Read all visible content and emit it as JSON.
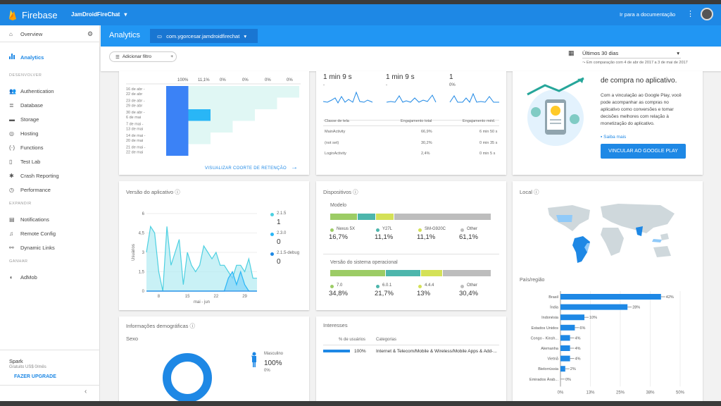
{
  "brand": {
    "name": "Firebase"
  },
  "project": {
    "name": "JamDroidFireChat"
  },
  "topbar": {
    "docs": "Ir para a documentação"
  },
  "sidebar": {
    "overview": "Overview",
    "analytics": "Analytics",
    "sec_dev": "DESENVOLVER",
    "dev": [
      "Authentication",
      "Database",
      "Storage",
      "Hosting",
      "Functions",
      "Test Lab",
      "Crash Reporting",
      "Performance"
    ],
    "sec_expand": "EXPANDIR",
    "expand": [
      "Notifications",
      "Remote Config",
      "Dynamic Links"
    ],
    "sec_earn": "GANHAR",
    "earn": [
      "AdMob"
    ],
    "plan": "Spark",
    "plan_sub": "Gratuito US$ 0/mês",
    "upgrade": "FAZER UPGRADE"
  },
  "subheader": {
    "title": "Analytics",
    "app": "com.ygorcesar.jamdroidfirechat"
  },
  "filter": {
    "add": "Adicionar filtro",
    "range": "Últimos 30 dias",
    "compare": "Em comparação com 4 de abr de 2017 a 3 de mai de 2017"
  },
  "cohort": {
    "header": [
      "100%",
      "11,1%",
      "0%",
      "0%",
      "0%",
      "0%"
    ],
    "rows": [
      "16 de abr - 22 de abr",
      "23 de abr - 29 de abr",
      "30 de abr - 6 de mai",
      "7 de mai - 13 de mai",
      "14 de mai - 20 de mai",
      "21 de mai - 22 de mai"
    ],
    "link": "VISUALIZAR COORTE DE RETENÇÃO"
  },
  "engagement": {
    "values": [
      "1 min 9 s",
      "1 min 9 s",
      "1"
    ],
    "subs": [
      "-",
      "-",
      "0%"
    ],
    "headers": [
      "Classe de tela",
      "Engajamento total",
      "Engajamento méd."
    ],
    "rows": [
      [
        "MainActivity",
        "66,9%",
        "6 min 50 s"
      ],
      [
        "(not set)",
        "30,2%",
        "0 min 35 s"
      ],
      [
        "LoginActivity",
        "2,4%",
        "0 min 5 s"
      ]
    ]
  },
  "promo": {
    "title": "de compra no aplicativo.",
    "text": [
      "Com a vinculação ao Google Play, você",
      "pode acompanhar as compras no",
      "aplicativo como conversões e tomar",
      "decisões melhores com relação à",
      "monetização do aplicativo."
    ],
    "link": "Saiba mais",
    "button": "VINCULAR AO GOOGLE PLAY"
  },
  "version": {
    "title": "Versão do aplicativo",
    "xlabel": "mai - jun",
    "ylabel": "Usuários",
    "legend": [
      {
        "name": "2.1.5",
        "value": "1",
        "color": "#4dd0e1"
      },
      {
        "name": "2.3.0",
        "value": "0",
        "color": "#29b6f6"
      },
      {
        "name": "2.1.5-debug",
        "value": "0",
        "color": "#1e88e5"
      }
    ]
  },
  "devices": {
    "title": "Dispositivos",
    "model": "Modelo",
    "models": [
      {
        "name": "Nexus 5X",
        "value": "16,7%",
        "color": "#9ccc65"
      },
      {
        "name": "Y27L",
        "value": "11,1%",
        "color": "#4db6ac"
      },
      {
        "name": "SM-G920C",
        "value": "11,1%",
        "color": "#d4e157"
      },
      {
        "name": "Other",
        "value": "61,1%",
        "color": "#bdbdbd"
      }
    ],
    "os": "Versão do sistema operacional",
    "oses": [
      {
        "name": "7.0",
        "value": "34,8%",
        "color": "#9ccc65"
      },
      {
        "name": "6.0.1",
        "value": "21,7%",
        "color": "#4db6ac"
      },
      {
        "name": "4.4.4",
        "value": "13%",
        "color": "#d4e157"
      },
      {
        "name": "Other",
        "value": "30,4%",
        "color": "#bdbdbd"
      }
    ]
  },
  "location": {
    "title": "Local",
    "region": "País/região"
  },
  "demo": {
    "title": "Informações demográficas",
    "sex": "Sexo",
    "male": "Masculino",
    "male_pct": "100%",
    "female_pct": "0%"
  },
  "interests": {
    "title": "Interesses",
    "h1": "% de usuários",
    "h2": "Categorias",
    "pct": "100%",
    "cat": "Internet & Telecom/Mobile & Wireless/Mobile Apps & Add-..."
  },
  "chart_data": [
    {
      "type": "line",
      "title": "Versão do aplicativo",
      "xlabel": "mai - jun",
      "ylabel": "Usuários",
      "x": [
        5,
        6,
        7,
        8,
        9,
        10,
        11,
        12,
        13,
        14,
        15,
        16,
        17,
        18,
        19,
        20,
        21,
        22,
        23,
        24,
        25,
        26,
        27,
        28,
        29,
        30,
        31,
        32
      ],
      "xticks": [
        "8",
        "15",
        "22",
        "29"
      ],
      "yticks": [
        "0",
        "1,5",
        "3",
        "4,5",
        "6"
      ],
      "ylim": [
        0,
        6
      ],
      "series": [
        {
          "name": "2.1.5",
          "values": [
            3,
            5,
            4.5,
            1.5,
            0,
            5,
            2,
            3,
            4,
            0.5,
            3,
            2,
            1.5,
            2,
            3.5,
            3,
            2.5,
            3,
            2,
            2,
            1.5,
            1,
            2,
            2,
            1.5,
            2.5,
            1,
            1
          ]
        },
        {
          "name": "2.3.0",
          "values": [
            0,
            0,
            0,
            0,
            0,
            0,
            0,
            0,
            0,
            0,
            0,
            0,
            0,
            0,
            0,
            0,
            0,
            0,
            0,
            0,
            1,
            1.5,
            0.5,
            1.5,
            0.5,
            0,
            0,
            0
          ]
        },
        {
          "name": "2.1.5-debug",
          "values": [
            0,
            0,
            0,
            0,
            0,
            0,
            0,
            0,
            0,
            0,
            0,
            0,
            0,
            0,
            0,
            0,
            0,
            0,
            0,
            0,
            0,
            0,
            0,
            0,
            0,
            0,
            0,
            0
          ]
        }
      ]
    },
    {
      "type": "bar",
      "title": "País/região",
      "categories": [
        "Brasil",
        "Índia",
        "Indonésia",
        "Estados Unidos",
        "Congo - Kinsh...",
        "Alemanha",
        "Vietnã",
        "Bielorrússia",
        "Emirados Árab..."
      ],
      "values": [
        42,
        28,
        10,
        6,
        4,
        4,
        4,
        2,
        0
      ],
      "labels": [
        "42%",
        "28%",
        "10%",
        "6%",
        "4%",
        "4%",
        "4%",
        "2%",
        "0%"
      ],
      "xticks": [
        "0%",
        "13%",
        "25%",
        "38%",
        "50%"
      ],
      "xlim": [
        0,
        50
      ]
    }
  ]
}
